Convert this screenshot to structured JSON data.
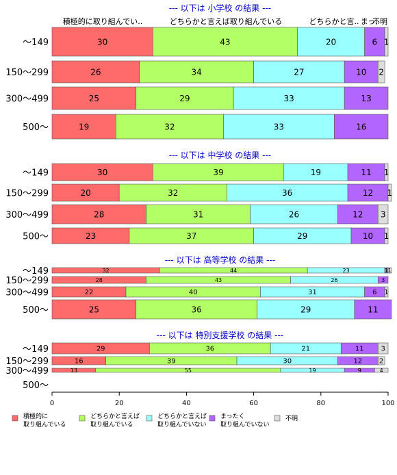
{
  "chart_data": {
    "type": "bar",
    "orientation": "horizontal",
    "stacked": true,
    "xlim": [
      0,
      100
    ],
    "x_ticks": [
      "0",
      "20",
      "40",
      "60",
      "80",
      "100"
    ],
    "grid": false,
    "legend_position": "bottom-left",
    "column_headers": [
      "積極的に取り組んでい..",
      "どちらかと言えば取り組んでいる",
      "どちらかと言..",
      "まっ..",
      "不明"
    ],
    "series": [
      {
        "name": "積極的に\n取り組んでいる",
        "color": "#ff6b6b"
      },
      {
        "name": "どちらかと言えば\n取り組んでいる",
        "color": "#b3ff66"
      },
      {
        "name": "どちらかと言えば\n取り組んでいない",
        "color": "#99ffff"
      },
      {
        "name": "まったく\n取り組んでいない",
        "color": "#b266ff"
      },
      {
        "name": "不明",
        "color": "#dddddd"
      }
    ],
    "panels": [
      {
        "title": "--- 以下は 小学校 の結果 ---",
        "categories": [
          "～149",
          "150～299",
          "300～499",
          "500～"
        ],
        "values": [
          [
            30,
            43,
            20,
            6,
            1
          ],
          [
            26,
            34,
            27,
            10,
            2
          ],
          [
            25,
            29,
            33,
            13,
            0
          ],
          [
            19,
            32,
            33,
            16,
            0
          ]
        ]
      },
      {
        "title": "--- 以下は 中学校 の結果 ---",
        "categories": [
          "～149",
          "150～299",
          "300～499",
          "500～"
        ],
        "values": [
          [
            30,
            39,
            19,
            11,
            1
          ],
          [
            20,
            32,
            36,
            12,
            1
          ],
          [
            28,
            31,
            26,
            12,
            3
          ],
          [
            23,
            37,
            29,
            10,
            1
          ]
        ]
      },
      {
        "title": "--- 以下は 高等学校 の結果 ---",
        "categories": [
          "～149",
          "150～299",
          "300～499",
          "500～"
        ],
        "values": [
          [
            32,
            44,
            23,
            1,
            1
          ],
          [
            28,
            43,
            26,
            3,
            0
          ],
          [
            22,
            40,
            31,
            6,
            1
          ],
          [
            25,
            36,
            29,
            11,
            0
          ]
        ]
      },
      {
        "title": "--- 以下は 特別支援学校 の結果 ---",
        "categories": [
          "～149",
          "150～299",
          "300～499",
          "500～"
        ],
        "values": [
          [
            29,
            36,
            21,
            11,
            3
          ],
          [
            16,
            39,
            30,
            12,
            2
          ],
          [
            13,
            55,
            19,
            9,
            4
          ],
          null
        ]
      }
    ]
  }
}
